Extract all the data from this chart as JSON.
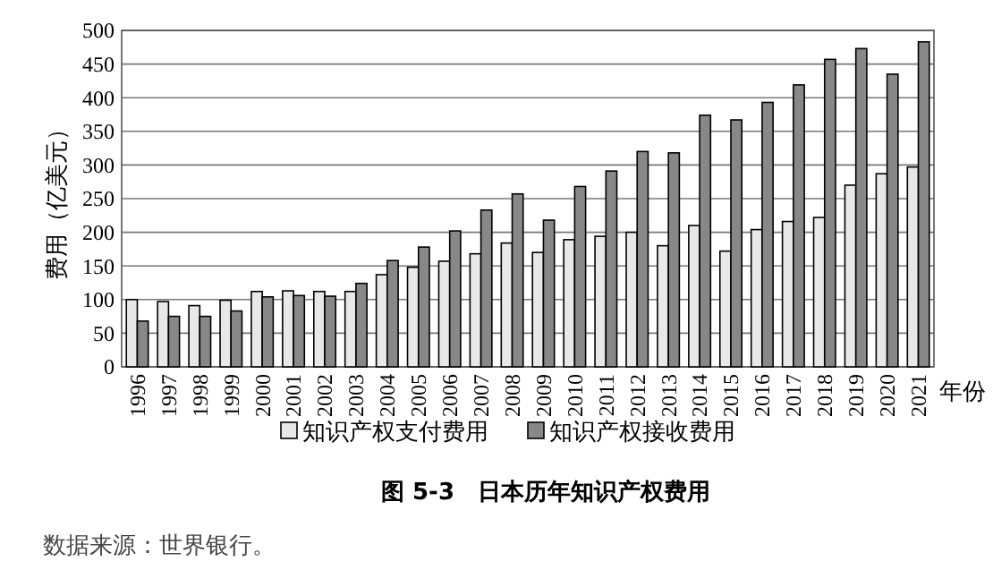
{
  "chart_data": {
    "type": "bar",
    "title": "图 5-3　日本历年知识产权费用",
    "xlabel": "年份",
    "ylabel": "费用（亿美元）",
    "categories": [
      "1996",
      "1997",
      "1998",
      "1999",
      "2000",
      "2001",
      "2002",
      "2003",
      "2004",
      "2005",
      "2006",
      "2007",
      "2008",
      "2009",
      "2010",
      "2011",
      "2012",
      "2013",
      "2014",
      "2015",
      "2016",
      "2017",
      "2018",
      "2019",
      "2020",
      "2021"
    ],
    "series": [
      {
        "name": "知识产权支付费用",
        "color": "#e8e8e8",
        "values": [
          100,
          97,
          91,
          99,
          112,
          113,
          112,
          112,
          137,
          148,
          157,
          168,
          184,
          170,
          189,
          194,
          200,
          180,
          210,
          172,
          204,
          216,
          222,
          270,
          287,
          297
        ]
      },
      {
        "name": "知识产权接收费用",
        "color": "#888888",
        "values": [
          68,
          75,
          75,
          83,
          104,
          106,
          105,
          124,
          158,
          178,
          202,
          233,
          257,
          218,
          268,
          291,
          320,
          318,
          374,
          367,
          393,
          419,
          457,
          473,
          435,
          483
        ]
      }
    ],
    "ylim": [
      0,
      500
    ],
    "yticks": [
      0,
      50,
      100,
      150,
      200,
      250,
      300,
      350,
      400,
      450,
      500
    ],
    "grid": "y",
    "legend": "bottom",
    "annotations": [
      "数据来源：世界银行。"
    ]
  }
}
